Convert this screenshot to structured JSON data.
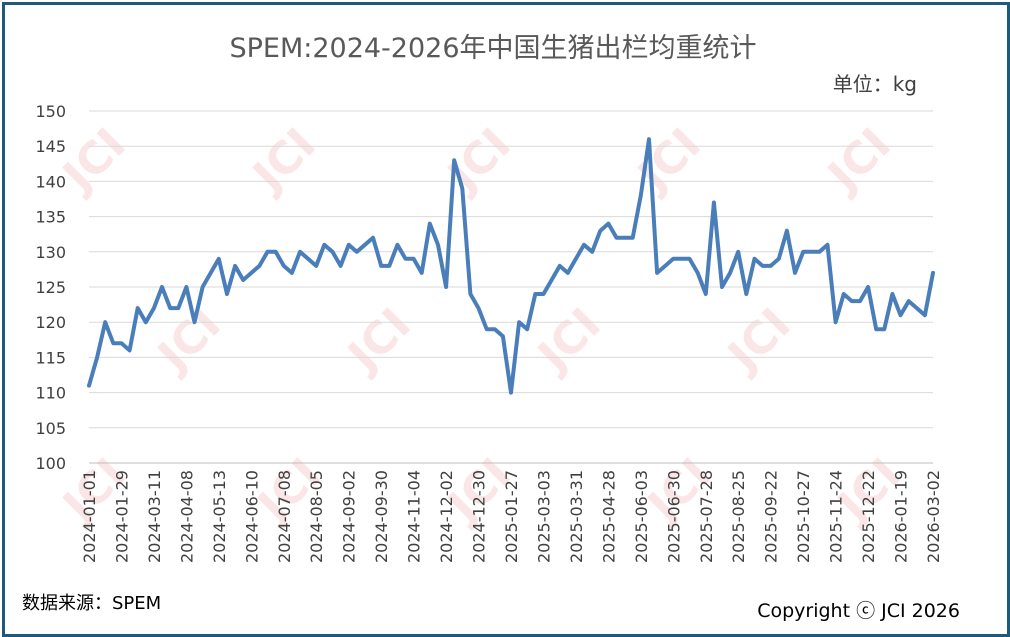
{
  "chart_data": {
    "type": "line",
    "title": "SPEM:2024-2026年中国生猪出栏均重统计",
    "unit_label": "单位：kg",
    "source": "数据来源：SPEM",
    "copyright": "Copyright ⓒ JCI 2026",
    "watermark": "JCI",
    "ylim": [
      100,
      150
    ],
    "yticks": [
      100,
      105,
      110,
      115,
      120,
      125,
      130,
      135,
      140,
      145,
      150
    ],
    "grid": true,
    "line_color": "#4a7ebb",
    "xticklabels": [
      "2024-01-01",
      "2024-01-29",
      "2024-03-11",
      "2024-04-08",
      "2024-05-13",
      "2024-06-10",
      "2024-07-08",
      "2024-08-05",
      "2024-09-02",
      "2024-09-30",
      "2024-11-04",
      "2024-12-02",
      "2024-12-30",
      "2025-01-27",
      "2025-03-03",
      "2025-03-31",
      "2025-04-28",
      "2025-06-03",
      "2025-06-30",
      "2025-07-28",
      "2025-08-25",
      "2025-09-22",
      "2025-10-27",
      "2025-11-24",
      "2025-12-22",
      "2026-01-19",
      "2026-03-02"
    ],
    "values": [
      111,
      115,
      120,
      117,
      117,
      116,
      122,
      120,
      122,
      125,
      122,
      122,
      125,
      120,
      125,
      127,
      129,
      124,
      128,
      126,
      127,
      128,
      130,
      130,
      128,
      127,
      130,
      129,
      128,
      131,
      130,
      128,
      131,
      130,
      131,
      132,
      128,
      128,
      131,
      129,
      129,
      127,
      134,
      131,
      125,
      143,
      139,
      124,
      122,
      119,
      119,
      118,
      110,
      120,
      119,
      124,
      124,
      126,
      128,
      127,
      129,
      131,
      130,
      133,
      134,
      132,
      132,
      132,
      138,
      146,
      127,
      128,
      129,
      129,
      129,
      127,
      124,
      137,
      125,
      127,
      130,
      124,
      129,
      128,
      128,
      129,
      133,
      127,
      130,
      130,
      130,
      131,
      120,
      124,
      123,
      123,
      125,
      119,
      119,
      124,
      121,
      123,
      122,
      121,
      127
    ]
  }
}
